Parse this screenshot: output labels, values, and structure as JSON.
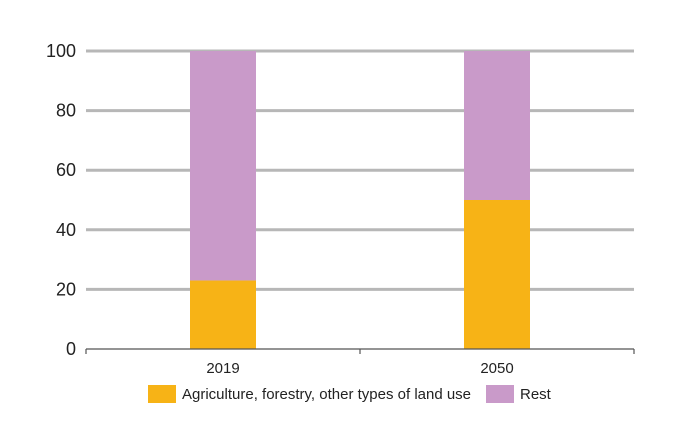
{
  "chart_data": {
    "type": "bar",
    "stacked": true,
    "categories": [
      "2019",
      "2050"
    ],
    "series": [
      {
        "name": "Agriculture, forestry, other types of land use",
        "values": [
          23,
          50
        ],
        "color": "#f7b316"
      },
      {
        "name": "Rest",
        "values": [
          77,
          50
        ],
        "color": "#c99ac9"
      }
    ],
    "yticks": [
      0,
      20,
      40,
      60,
      80,
      100
    ],
    "ylim": [
      0,
      100
    ],
    "title": "",
    "xlabel": "",
    "ylabel": "",
    "grid": true,
    "legend_position": "bottom"
  }
}
